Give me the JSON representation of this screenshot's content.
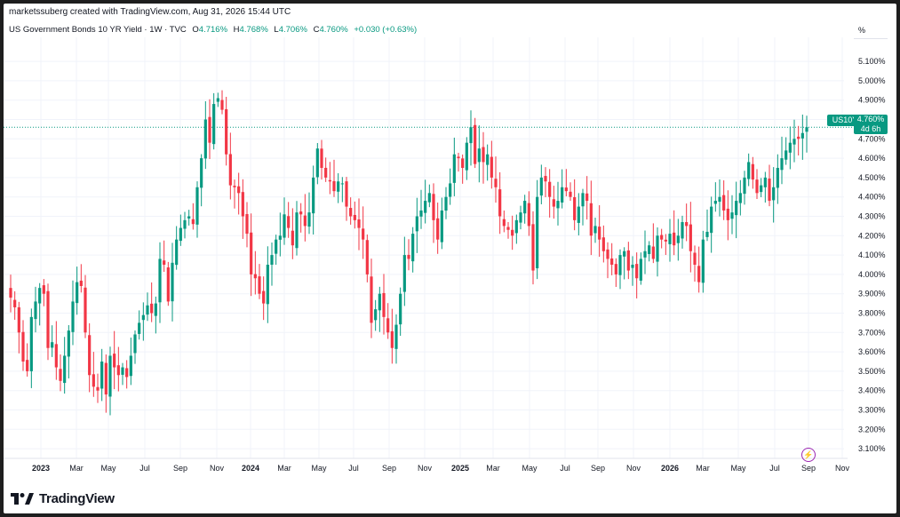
{
  "header": {
    "attribution": "marketssuberg created with TradingView.com, Aug 31, 2026 15:44 UTC"
  },
  "legend": {
    "title": "US Government Bonds 10 YR Yield · 1W · TVC",
    "o_label": "O",
    "o_value": "4.716%",
    "h_label": "H",
    "h_value": "4.768%",
    "l_label": "L",
    "l_value": "4.706%",
    "c_label": "C",
    "c_value": "4.760%",
    "change": "+0.030 (+0.63%)"
  },
  "axis": {
    "unit": "%"
  },
  "price_tag": {
    "symbol": "US10Y",
    "price": "4.760%",
    "countdown": "4d 6h"
  },
  "footer": {
    "brand": "TradingView"
  },
  "colors": {
    "up": "#089981",
    "down": "#F23645",
    "last_price_line": "#089981",
    "accent": "#9c27b0"
  },
  "chart_data": {
    "type": "candlestick",
    "title": "US Government Bonds 10 YR Yield · 1W · TVC",
    "ylim": [
      3.05,
      5.15
    ],
    "y_ticks": [
      "5.100%",
      "5.000%",
      "4.900%",
      "4.800%",
      "4.700%",
      "4.600%",
      "4.500%",
      "4.400%",
      "4.300%",
      "4.200%",
      "4.100%",
      "4.000%",
      "3.900%",
      "3.800%",
      "3.700%",
      "3.600%",
      "3.500%",
      "3.400%",
      "3.300%",
      "3.200%",
      "3.100%"
    ],
    "x_ticks": [
      "2023",
      "Mar",
      "May",
      "Jul",
      "Sep",
      "Nov",
      "2024",
      "Mar",
      "May",
      "Jul",
      "Sep",
      "Nov",
      "2025",
      "Mar",
      "May",
      "Jul",
      "Sep",
      "Nov",
      "2026",
      "Mar",
      "May",
      "Jul",
      "Sep",
      "Nov"
    ],
    "x_ticks_bold": [
      "2023",
      "2024",
      "2025",
      "2026"
    ],
    "last_price": 4.76,
    "close_path": [
      3.88,
      3.83,
      3.7,
      3.55,
      3.5,
      3.78,
      3.86,
      3.93,
      3.9,
      3.62,
      3.65,
      3.52,
      3.45,
      3.58,
      3.71,
      3.86,
      3.96,
      3.94,
      3.7,
      3.48,
      3.42,
      3.4,
      3.55,
      3.38,
      3.58,
      3.52,
      3.48,
      3.52,
      3.47,
      3.58,
      3.69,
      3.75,
      3.79,
      3.84,
      3.8,
      3.85,
      4.08,
      4.05,
      3.86,
      4.06,
      4.18,
      4.24,
      4.28,
      4.3,
      4.26,
      4.45,
      4.6,
      4.8,
      4.68,
      4.88,
      4.91,
      4.85,
      4.62,
      4.46,
      4.45,
      4.42,
      4.3,
      4.21,
      4.0,
      3.98,
      3.9,
      3.85,
      4.05,
      4.1,
      4.18,
      4.2,
      4.31,
      4.24,
      4.15,
      4.32,
      4.31,
      4.25,
      4.32,
      4.5,
      4.65,
      4.55,
      4.5,
      4.48,
      4.43,
      4.48,
      4.47,
      4.35,
      4.3,
      4.28,
      4.24,
      4.18,
      4.0,
      3.75,
      3.82,
      3.9,
      3.78,
      3.7,
      3.62,
      3.74,
      3.9,
      4.1,
      4.08,
      4.21,
      4.3,
      4.33,
      4.38,
      4.42,
      4.28,
      4.18,
      4.33,
      4.4,
      4.47,
      4.62,
      4.6,
      4.55,
      4.68,
      4.76,
      4.57,
      4.65,
      4.58,
      4.62,
      4.5,
      4.45,
      4.3,
      4.25,
      4.23,
      4.2,
      4.28,
      4.32,
      4.38,
      4.25,
      4.02,
      4.4,
      4.5,
      4.48,
      4.4,
      4.35,
      4.38,
      4.45,
      4.43,
      4.4,
      4.28,
      4.35,
      4.42,
      4.38,
      4.2,
      4.25,
      4.18,
      4.12,
      4.08,
      4.05,
      4.0,
      4.1,
      4.12,
      4.02,
      4.05,
      3.98,
      4.08,
      4.12,
      4.15,
      4.08,
      4.2,
      4.18,
      4.17,
      4.21,
      4.15,
      4.2,
      4.27,
      4.25,
      4.12,
      4.05,
      3.96,
      4.18,
      4.22,
      4.35,
      4.38,
      4.4,
      4.33,
      4.28,
      4.32,
      4.38,
      4.42,
      4.5,
      4.58,
      4.49,
      4.42,
      4.46,
      4.5,
      4.38,
      4.45,
      4.55,
      4.6,
      4.64,
      4.68,
      4.7,
      4.7,
      4.73,
      4.76
    ]
  }
}
